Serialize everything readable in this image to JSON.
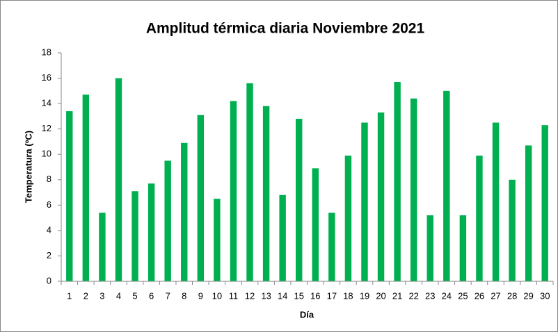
{
  "chart_data": {
    "type": "bar",
    "title": "Amplitud térmica diaria Noviembre 2021",
    "x_label": "Día",
    "y_label": "Temperatura (ºC)",
    "categories": [
      "1",
      "2",
      "3",
      "4",
      "5",
      "6",
      "7",
      "8",
      "9",
      "10",
      "11",
      "12",
      "13",
      "14",
      "15",
      "16",
      "17",
      "18",
      "19",
      "20",
      "21",
      "22",
      "23",
      "24",
      "25",
      "26",
      "27",
      "28",
      "29",
      "30"
    ],
    "values": [
      13.4,
      14.7,
      5.4,
      16.0,
      7.1,
      7.7,
      9.5,
      10.9,
      13.1,
      6.5,
      14.2,
      15.6,
      13.8,
      6.8,
      12.8,
      8.9,
      5.4,
      9.9,
      12.5,
      13.3,
      15.7,
      14.4,
      5.2,
      15.0,
      5.2,
      9.9,
      12.5,
      8.0,
      10.7,
      12.3
    ],
    "color": "#00b050",
    "ylim": [
      0,
      18
    ],
    "yticks": [
      0,
      2,
      4,
      6,
      8,
      10,
      12,
      14,
      16,
      18
    ],
    "grid": false
  }
}
